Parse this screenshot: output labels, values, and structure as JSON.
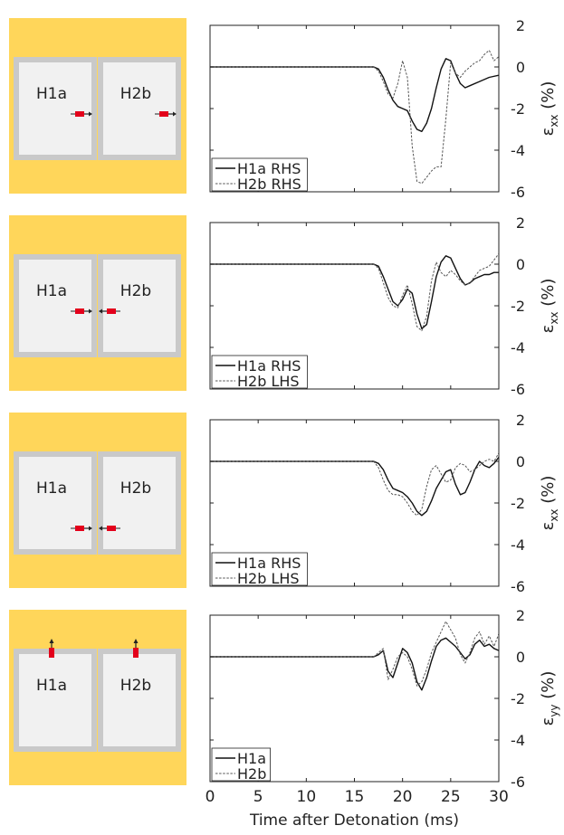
{
  "colors": {
    "panel_bg": "#FFD65A",
    "room_fill": "#F1F1F1",
    "room_wall": "#C9C9C9",
    "gauge": "#E3001B",
    "axis": "#222222"
  },
  "shared_x_axis": {
    "label": "Time after Detonation (ms)",
    "ticks": [
      "0",
      "5",
      "10",
      "15",
      "20",
      "25",
      "30"
    ]
  },
  "y_ticks": [
    "2",
    "0",
    "-2",
    "-4",
    "-6"
  ],
  "chart_data": [
    {
      "type": "line",
      "xlim": [
        0,
        30
      ],
      "ylim": [
        -6,
        2
      ],
      "ylabel_main": "ε",
      "ylabel_sub": "xx",
      "ylabel_unit": "(%)",
      "schematic": {
        "room1": "H1a",
        "room2": "H2b",
        "gauge1": "right",
        "gauge2": "right",
        "position": "mid"
      },
      "series": [
        {
          "name": "H1a RHS",
          "style": "solid",
          "x": [
            0,
            17.0,
            17.5,
            18.0,
            18.5,
            19.0,
            19.5,
            20.0,
            20.5,
            21.0,
            21.5,
            22.0,
            22.5,
            23.0,
            23.5,
            24.0,
            24.5,
            25.0,
            25.5,
            26.0,
            26.5,
            27.0,
            28.0,
            29.0,
            30.0
          ],
          "y": [
            0,
            0,
            -0.1,
            -0.5,
            -1.1,
            -1.6,
            -1.9,
            -2.0,
            -2.1,
            -2.6,
            -3.0,
            -3.1,
            -2.7,
            -2.0,
            -1.0,
            -0.1,
            0.4,
            0.3,
            -0.3,
            -0.8,
            -1.0,
            -0.9,
            -0.7,
            -0.5,
            -0.4
          ]
        },
        {
          "name": "H2b RHS",
          "style": "dashed",
          "x": [
            0,
            17.0,
            17.5,
            18.0,
            18.5,
            19.0,
            19.5,
            20.0,
            20.5,
            21.0,
            21.5,
            22.0,
            22.5,
            23.0,
            23.5,
            24.0,
            24.5,
            25.0,
            25.5,
            26.0,
            26.5,
            27.0,
            27.5,
            28.0,
            28.5,
            29.0,
            29.5,
            30.0
          ],
          "y": [
            0,
            0,
            -0.2,
            -0.7,
            -1.3,
            -1.5,
            -0.8,
            0.3,
            -0.5,
            -3.8,
            -5.5,
            -5.6,
            -5.3,
            -5.0,
            -4.8,
            -4.8,
            -2.5,
            0.2,
            -0.3,
            -0.5,
            -0.2,
            0.0,
            0.2,
            0.3,
            0.6,
            0.8,
            0.3,
            0.5
          ]
        }
      ]
    },
    {
      "type": "line",
      "xlim": [
        0,
        30
      ],
      "ylim": [
        -6,
        2
      ],
      "ylabel_main": "ε",
      "ylabel_sub": "xx",
      "ylabel_unit": "(%)",
      "schematic": {
        "room1": "H1a",
        "room2": "H2b",
        "gauge1": "right",
        "gauge2": "left",
        "position": "mid"
      },
      "series": [
        {
          "name": "H1a RHS",
          "style": "solid",
          "x": [
            0,
            17.0,
            17.5,
            18.0,
            18.5,
            19.0,
            19.5,
            20.0,
            20.5,
            21.0,
            21.5,
            22.0,
            22.5,
            23.0,
            23.5,
            24.0,
            24.5,
            25.0,
            25.5,
            26.0,
            26.5,
            27.0,
            27.5,
            28.0,
            28.5,
            29.0,
            29.5,
            30.0
          ],
          "y": [
            0,
            0,
            -0.1,
            -0.6,
            -1.2,
            -1.8,
            -2.0,
            -1.7,
            -1.2,
            -1.4,
            -2.4,
            -3.1,
            -2.9,
            -1.8,
            -0.6,
            0.1,
            0.4,
            0.3,
            -0.2,
            -0.7,
            -1.0,
            -0.9,
            -0.7,
            -0.6,
            -0.5,
            -0.5,
            -0.4,
            -0.4
          ]
        },
        {
          "name": "H2b LHS",
          "style": "dashed",
          "x": [
            0,
            17.0,
            17.5,
            18.0,
            18.5,
            19.0,
            19.5,
            20.0,
            20.5,
            21.0,
            21.5,
            22.0,
            22.5,
            23.0,
            23.5,
            24.0,
            24.5,
            25.0,
            25.5,
            26.0,
            26.5,
            27.0,
            27.5,
            28.0,
            28.5,
            29.0,
            29.5,
            30.0
          ],
          "y": [
            0,
            0,
            -0.2,
            -0.9,
            -1.6,
            -2.0,
            -2.1,
            -1.5,
            -1.0,
            -1.9,
            -3.0,
            -3.2,
            -2.5,
            -0.8,
            0.1,
            -0.4,
            -0.6,
            -0.3,
            -0.5,
            -0.8,
            -1.0,
            -0.9,
            -0.6,
            -0.3,
            -0.2,
            -0.1,
            0.2,
            0.5
          ]
        }
      ]
    },
    {
      "type": "line",
      "xlim": [
        0,
        30
      ],
      "ylim": [
        -6,
        2
      ],
      "ylabel_main": "ε",
      "ylabel_sub": "xx",
      "ylabel_unit": "(%)",
      "schematic": {
        "room1": "H1a",
        "room2": "H2b",
        "gauge1": "right",
        "gauge2": "left",
        "position": "low"
      },
      "series": [
        {
          "name": "H1a RHS",
          "style": "solid",
          "x": [
            0,
            17.0,
            17.5,
            18.0,
            18.5,
            19.0,
            19.5,
            20.0,
            20.5,
            21.0,
            21.5,
            22.0,
            22.5,
            23.0,
            23.5,
            24.0,
            24.5,
            25.0,
            25.5,
            26.0,
            26.5,
            27.0,
            27.5,
            28.0,
            28.5,
            29.0,
            29.5,
            30.0
          ],
          "y": [
            0,
            0,
            -0.1,
            -0.4,
            -0.9,
            -1.3,
            -1.4,
            -1.5,
            -1.7,
            -2.0,
            -2.4,
            -2.6,
            -2.4,
            -1.9,
            -1.3,
            -0.9,
            -0.5,
            -0.4,
            -1.1,
            -1.6,
            -1.5,
            -1.0,
            -0.4,
            0.0,
            -0.2,
            -0.3,
            -0.1,
            0.2
          ]
        },
        {
          "name": "H2b LHS",
          "style": "dashed",
          "x": [
            0,
            17.0,
            17.5,
            18.0,
            18.5,
            19.0,
            19.5,
            20.0,
            20.5,
            21.0,
            21.5,
            22.0,
            22.5,
            23.0,
            23.5,
            24.0,
            24.5,
            25.0,
            25.5,
            26.0,
            26.5,
            27.0,
            27.5,
            28.0,
            28.5,
            29.0,
            29.5,
            30.0
          ],
          "y": [
            0,
            0,
            -0.3,
            -0.9,
            -1.4,
            -1.6,
            -1.6,
            -1.7,
            -2.0,
            -2.4,
            -2.6,
            -2.3,
            -1.2,
            -0.4,
            -0.2,
            -0.6,
            -1.0,
            -0.9,
            -0.3,
            -0.1,
            -0.2,
            -0.5,
            -0.4,
            -0.2,
            0.0,
            0.1,
            0.0,
            0.4
          ]
        }
      ]
    },
    {
      "type": "line",
      "xlim": [
        0,
        30
      ],
      "ylim": [
        -6,
        2
      ],
      "ylabel_main": "ε",
      "ylabel_sub": "yy",
      "ylabel_unit": "(%)",
      "schematic": {
        "room1": "H1a",
        "room2": "H2b",
        "gauge1": "top",
        "gauge2": "top",
        "position": "top"
      },
      "series": [
        {
          "name": "H1a",
          "style": "solid",
          "x": [
            0,
            17.0,
            17.5,
            18.0,
            18.5,
            19.0,
            19.5,
            20.0,
            20.5,
            21.0,
            21.5,
            22.0,
            22.5,
            23.0,
            23.5,
            24.0,
            24.5,
            25.0,
            25.5,
            26.0,
            26.5,
            27.0,
            27.5,
            28.0,
            28.5,
            29.0,
            29.5,
            30.0
          ],
          "y": [
            0,
            0,
            0.1,
            0.3,
            -0.7,
            -1.0,
            -0.3,
            0.4,
            0.2,
            -0.3,
            -1.2,
            -1.6,
            -1.0,
            -0.2,
            0.5,
            0.8,
            0.9,
            0.7,
            0.5,
            0.2,
            -0.1,
            0.1,
            0.6,
            0.8,
            0.5,
            0.6,
            0.4,
            0.3
          ]
        },
        {
          "name": "H2b",
          "style": "dashed",
          "x": [
            0,
            17.0,
            17.5,
            18.0,
            18.5,
            19.0,
            19.5,
            20.0,
            20.5,
            21.0,
            21.5,
            22.0,
            22.5,
            23.0,
            23.5,
            24.0,
            24.5,
            25.0,
            25.5,
            26.0,
            26.5,
            27.0,
            27.5,
            28.0,
            28.5,
            29.0,
            29.5,
            30.0
          ],
          "y": [
            0,
            0,
            0.2,
            0.4,
            -1.1,
            -0.6,
            0.0,
            0.2,
            0.0,
            -0.6,
            -1.4,
            -1.2,
            -0.6,
            0.2,
            0.7,
            1.2,
            1.7,
            1.3,
            0.9,
            0.1,
            -0.3,
            0.2,
            0.9,
            1.2,
            0.6,
            1.0,
            0.5,
            1.1
          ]
        }
      ]
    }
  ]
}
